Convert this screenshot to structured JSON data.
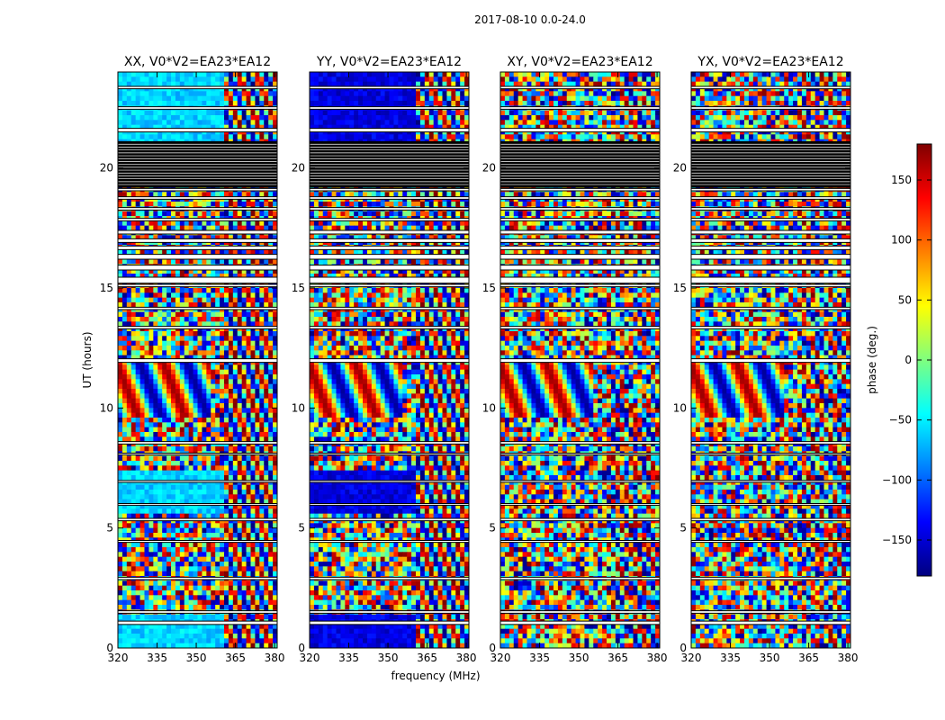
{
  "figure_title": "2017-08-10 0.0-24.0",
  "colorbar": {
    "label": "phase (deg.)",
    "ticks": [
      "150",
      "100",
      "50",
      "0",
      "−50",
      "−100",
      "−150"
    ],
    "tick_values": [
      150,
      100,
      50,
      0,
      -50,
      -100,
      -150
    ],
    "range": [
      -180,
      180
    ],
    "colormap": [
      "#00007f",
      "#0000ff",
      "#007fff",
      "#00ffff",
      "#7fff7f",
      "#ffff00",
      "#ff7f00",
      "#ff0000",
      "#7f0000"
    ]
  },
  "chart_data": {
    "type": "heatmap",
    "xlabel": "frequency (MHz)",
    "ylabel": "UT (hours)",
    "xlim": [
      320,
      381
    ],
    "ylim": [
      0,
      24
    ],
    "x_ticks": [
      "320",
      "335",
      "350",
      "365",
      "380"
    ],
    "x_tick_values": [
      320,
      335,
      350,
      365,
      380
    ],
    "y_ticks": [
      "0",
      "5",
      "10",
      "15",
      "20"
    ],
    "y_tick_values": [
      0,
      5,
      10,
      15,
      20
    ],
    "value_label": "phase (deg.)",
    "value_range": [
      -180,
      180
    ],
    "panels": [
      {
        "title": "XX, V0*V2=EA23*EA12",
        "base_phase": -60
      },
      {
        "title": "YY, V0*V2=EA23*EA12",
        "base_phase": -145
      },
      {
        "title": "XY, V0*V2=EA23*EA12",
        "base_phase": null
      },
      {
        "title": "YX, V0*V2=EA23*EA12",
        "base_phase": null
      }
    ],
    "flagged_hours": [
      [
        0.98,
        1.12
      ],
      [
        1.45,
        1.55
      ],
      [
        2.85,
        2.95
      ],
      [
        4.4,
        4.48
      ],
      [
        5.3,
        5.4
      ],
      [
        5.95,
        6.02
      ],
      [
        6.9,
        6.98
      ],
      [
        8.05,
        8.12
      ],
      [
        8.5,
        8.6
      ],
      [
        11.9,
        12.05
      ],
      [
        13.3,
        13.4
      ],
      [
        14.1,
        14.2
      ],
      [
        15.05,
        15.15
      ],
      [
        15.2,
        15.45
      ],
      [
        15.75,
        15.95
      ],
      [
        16.2,
        16.4
      ],
      [
        16.6,
        16.75
      ],
      [
        16.9,
        17.05
      ],
      [
        17.25,
        17.4
      ],
      [
        17.8,
        17.9
      ],
      [
        18.25,
        18.35
      ],
      [
        18.7,
        18.8
      ],
      [
        19.05,
        19.15
      ],
      [
        19.2,
        21.1
      ],
      [
        21.5,
        21.65
      ],
      [
        22.45,
        22.55
      ],
      [
        23.3,
        23.4
      ]
    ]
  }
}
